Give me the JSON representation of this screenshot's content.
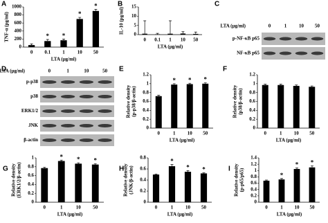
{
  "chart_data": [
    {
      "type": "bar",
      "panel": "A",
      "ylabel": [
        "TNF-α (pg/ml)"
      ],
      "xlabel": "LTA (μg/ml)",
      "categories": [
        "0",
        "0.1",
        "1",
        "10",
        "50"
      ],
      "values": [
        50,
        150,
        170,
        700,
        900
      ],
      "errors": [
        30,
        40,
        30,
        40,
        40
      ],
      "significance": [
        null,
        "*",
        "*",
        "*",
        "*"
      ],
      "color": "#000000",
      "ylim": [
        0,
        1000
      ],
      "yticks": [
        0,
        200,
        400,
        600,
        800,
        1000
      ]
    },
    {
      "type": "bar",
      "panel": "B",
      "ylabel": [
        "IL-10 (pg/ml)"
      ],
      "xlabel": "LTA (μg/ml)",
      "categories": [
        "0",
        "0.1",
        "1",
        "10",
        "50"
      ],
      "values": [
        0.5,
        0.2,
        0.5,
        0.6,
        0.4
      ],
      "errors": [
        7,
        0.5,
        7,
        1,
        1
      ],
      "color": "#000000",
      "ylim": [
        0,
        15
      ],
      "yticks": [
        0,
        5,
        10,
        15
      ]
    },
    {
      "type": "bar",
      "panel": "E",
      "ylabel": [
        "Relative density",
        "(p-p38/β-actin)"
      ],
      "xlabel": "LTA (μg/ml)",
      "categories": [
        "0",
        "1",
        "10",
        "50"
      ],
      "values": [
        0.72,
        0.98,
        0.99,
        1.0
      ],
      "errors": [
        0.02,
        0.02,
        0.02,
        0.02
      ],
      "significance": [
        null,
        "*",
        "*",
        "*"
      ],
      "color": "#000000",
      "ylim": [
        0,
        1.2
      ],
      "yticks": [
        0,
        0.2,
        0.4,
        0.6,
        0.8,
        1,
        1.2
      ]
    },
    {
      "type": "bar",
      "panel": "F",
      "ylabel": [
        "Relative density",
        "(p38/β-actin)"
      ],
      "xlabel": "LTA (μg/ml)",
      "categories": [
        "0",
        "1",
        "10",
        "50"
      ],
      "values": [
        0.97,
        0.97,
        0.95,
        0.93
      ],
      "errors": [
        0.02,
        0.02,
        0.02,
        0.02
      ],
      "color": "#000000",
      "ylim": [
        0,
        1.2
      ],
      "yticks": [
        0,
        0.2,
        0.4,
        0.6,
        0.8,
        1,
        1.2
      ]
    },
    {
      "type": "bar",
      "panel": "G",
      "ylabel": [
        "Relative density",
        "(ERK1/2/β-actin)"
      ],
      "xlabel": "LTA (μg/ml)",
      "categories": [
        "0",
        "1",
        "10",
        "50"
      ],
      "values": [
        0.77,
        0.93,
        0.87,
        0.85
      ],
      "errors": [
        0.02,
        0.02,
        0.02,
        0.02
      ],
      "significance": [
        null,
        "*",
        "*",
        "*"
      ],
      "color": "#000000",
      "ylim": [
        0,
        1
      ],
      "yticks": [
        0,
        0.2,
        0.4,
        0.6,
        0.8,
        1
      ]
    },
    {
      "type": "bar",
      "panel": "H",
      "ylabel": [
        "Relative density",
        "(JNK/β-actin)"
      ],
      "xlabel": "LTA (μg/ml)",
      "categories": [
        "0",
        "1",
        "10",
        "50"
      ],
      "values": [
        0.5,
        0.65,
        0.55,
        0.52
      ],
      "errors": [
        0.01,
        0.03,
        0.02,
        0.01
      ],
      "significance": [
        null,
        "*",
        "*",
        "*"
      ],
      "color": "#000000",
      "ylim": [
        0,
        0.8
      ],
      "yticks": [
        0,
        0.2,
        0.4,
        0.6,
        0.8
      ]
    },
    {
      "type": "bar",
      "panel": "I",
      "ylabel": [
        "Relative density",
        "(p-p65/p65)"
      ],
      "xlabel": "LTA (μg/ml)",
      "categories": [
        "0",
        "1",
        "10",
        "50"
      ],
      "values": [
        0.68,
        0.72,
        1.05,
        1.1
      ],
      "errors": [
        0.02,
        0.03,
        0.03,
        0.05
      ],
      "significance": [
        null,
        "*",
        "*",
        "*"
      ],
      "color": "#000000",
      "ylim": [
        0,
        1.4
      ],
      "yticks": [
        0,
        0.2,
        0.4,
        0.6,
        0.8,
        1,
        1.2,
        1.4
      ]
    }
  ],
  "blots": [
    {
      "panel": "C",
      "header": "LTA (μg/ml)",
      "lanes": [
        "0",
        "1",
        "10",
        "50"
      ],
      "rows": [
        "p-NF-κB p65",
        "NF-κB p65"
      ]
    },
    {
      "panel": "D",
      "header": "LTA (μg/ml)",
      "lanes": [
        "0",
        "1",
        "10",
        "50"
      ],
      "rows": [
        "p-p38",
        "p38",
        "ERK1/2",
        "JNK",
        "β-actin"
      ]
    }
  ]
}
